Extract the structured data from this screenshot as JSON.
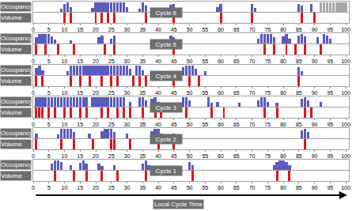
{
  "chart_data": [
    {
      "type": "bar",
      "title": "Cycle 6",
      "xlim": [
        0,
        101
      ],
      "xticks": [
        0,
        5,
        10,
        15,
        20,
        25,
        30,
        35,
        40,
        45,
        50,
        55,
        60,
        65,
        70,
        75,
        80,
        85,
        90,
        95,
        100
      ],
      "ylim": [
        0,
        1
      ],
      "tick_labels": "x",
      "series": [
        {
          "name": "Occupancy",
          "color": "#5b5bbd",
          "x": [
            9,
            10,
            11,
            12,
            19,
            20,
            21,
            22,
            23,
            24,
            25,
            26,
            27,
            28,
            29,
            30,
            34,
            35,
            36,
            44,
            45,
            59,
            60,
            70,
            71,
            85,
            86,
            89,
            92,
            93,
            94,
            95,
            96,
            97,
            98,
            99,
            100
          ],
          "values": [
            0.3,
            0.8,
            0.9,
            0.5,
            0.4,
            0.9,
            0.9,
            0.9,
            0.9,
            0.9,
            0.9,
            0.9,
            0.9,
            0.9,
            0.9,
            0.5,
            0.3,
            0.9,
            0.6,
            0.7,
            0.8,
            0.5,
            0.8,
            0.8,
            0.4,
            0.8,
            0.6,
            0.8,
            0.9,
            0.9,
            0.9,
            0.9,
            0.9,
            0.9,
            0.9,
            0.9,
            0.9
          ],
          "colors": [
            "#5b5bbd",
            "#5b5bbd",
            "#5b5bbd",
            "#5b5bbd",
            "#5b5bbd",
            "#5b5bbd",
            "#5b5bbd",
            "#5b5bbd",
            "#5b5bbd",
            "#5b5bbd",
            "#5b5bbd",
            "#5b5bbd",
            "#5b5bbd",
            "#5b5bbd",
            "#5b5bbd",
            "#5b5bbd",
            "#5b5bbd",
            "#5b5bbd",
            "#5b5bbd",
            "#5b5bbd",
            "#5b5bbd",
            "#5b5bbd",
            "#5b5bbd",
            "#5b5bbd",
            "#5b5bbd",
            "#5b5bbd",
            "#5b5bbd",
            "#5b5bbd",
            "#a8a8a8",
            "#a8a8a8",
            "#a8a8a8",
            "#a8a8a8",
            "#a8a8a8",
            "#a8a8a8",
            "#a8a8a8",
            "#a8a8a8",
            "#a8a8a8"
          ]
        },
        {
          "name": "Volume",
          "color": "#e0141c",
          "x": [
            10,
            12,
            20,
            22,
            24,
            26,
            36,
            45,
            60,
            70,
            86,
            90
          ],
          "values": [
            1,
            1,
            1,
            1,
            1,
            1,
            1,
            1,
            1,
            1,
            1,
            1
          ]
        }
      ]
    },
    {
      "type": "bar",
      "title": "Cycle 5",
      "xlim": [
        0,
        101
      ],
      "xticks": [
        0,
        5,
        10,
        15,
        20,
        25,
        30,
        35,
        40,
        45,
        50,
        55,
        60,
        65,
        70,
        75,
        80,
        85,
        90,
        95,
        100
      ],
      "ylim": [
        0,
        1
      ],
      "tick_labels": "x",
      "series": [
        {
          "name": "Occupancy",
          "color": "#5b5bbd",
          "x": [
            1,
            2,
            3,
            4,
            5,
            6,
            7,
            12,
            21,
            22,
            25,
            26,
            44,
            45,
            72,
            73,
            74,
            75,
            76,
            77,
            80,
            81,
            82,
            85,
            86,
            87,
            91,
            93,
            94,
            95
          ],
          "values": [
            0.6,
            0.9,
            0.9,
            0.9,
            0.9,
            0.7,
            0.4,
            0.3,
            0.6,
            0.8,
            0.5,
            0.8,
            0.8,
            0.6,
            0.5,
            0.9,
            0.9,
            0.9,
            0.9,
            0.6,
            0.7,
            0.9,
            0.5,
            0.8,
            0.9,
            0.7,
            0.6,
            0.9,
            0.8,
            0.5
          ]
        },
        {
          "name": "Volume",
          "color": "#e0141c",
          "x": [
            1,
            4,
            8,
            13,
            23,
            26,
            45,
            74,
            77,
            81,
            84,
            87,
            92
          ],
          "values": [
            1,
            1,
            1,
            1,
            1,
            1,
            1,
            1,
            1,
            1,
            1,
            1,
            1
          ]
        }
      ]
    },
    {
      "type": "bar",
      "title": "Cycle 4",
      "xlim": [
        0,
        101
      ],
      "xticks": [
        0,
        5,
        10,
        15,
        20,
        25,
        30,
        35,
        40,
        45,
        50,
        55,
        60,
        65,
        70,
        75,
        80,
        85,
        90,
        95,
        100
      ],
      "ylim": [
        0,
        1
      ],
      "tick_labels": "x",
      "series": [
        {
          "name": "Occupancy",
          "color": "#5b5bbd",
          "x": [
            1,
            2,
            3,
            11,
            12,
            13,
            14,
            15,
            16,
            17,
            18,
            19,
            20,
            21,
            22,
            23,
            24,
            25,
            26,
            27,
            28,
            29,
            30,
            31,
            33,
            34,
            35,
            48,
            49,
            50,
            51,
            52,
            55,
            85,
            86
          ],
          "values": [
            0.7,
            0.9,
            0.5,
            0.4,
            0.9,
            0.9,
            0.9,
            0.9,
            0.9,
            0.9,
            0.9,
            0.9,
            0.9,
            0.9,
            0.9,
            0.9,
            0.9,
            0.9,
            0.9,
            0.9,
            0.9,
            0.9,
            0.9,
            0.6,
            0.9,
            0.9,
            0.5,
            0.8,
            0.9,
            0.9,
            0.9,
            0.6,
            0.4,
            0.8,
            0.4
          ]
        },
        {
          "name": "Volume",
          "color": "#e0141c",
          "x": [
            1,
            3,
            12,
            15,
            18,
            22,
            25,
            27,
            32,
            34,
            36,
            45,
            50,
            53,
            85
          ],
          "values": [
            1,
            1,
            1,
            1,
            1,
            1,
            1,
            1,
            1,
            1,
            1,
            1,
            1,
            1,
            1
          ]
        }
      ]
    },
    {
      "type": "bar",
      "title": "Cycle 3",
      "xlim": [
        0,
        101
      ],
      "xticks": [
        0,
        5,
        10,
        15,
        20,
        25,
        30,
        35,
        40,
        45,
        50,
        55,
        60,
        65,
        70,
        75,
        80,
        85,
        90,
        95,
        100
      ],
      "ylim": [
        0,
        1
      ],
      "tick_labels": "x",
      "series": [
        {
          "name": "Occupancy",
          "color": "#5b5bbd",
          "x": [
            1,
            2,
            3,
            4,
            5,
            6,
            7,
            8,
            9,
            10,
            11,
            12,
            13,
            14,
            15,
            16,
            17,
            19,
            20,
            21,
            22,
            23,
            24,
            25,
            26,
            27,
            28,
            29,
            31,
            34,
            35,
            36,
            38,
            39,
            40,
            48,
            49,
            50,
            56,
            57,
            59,
            66,
            72,
            73,
            74,
            75,
            78,
            86,
            87,
            88,
            92
          ],
          "values": [
            0.9,
            0.9,
            0.9,
            0.9,
            0.9,
            0.9,
            0.9,
            0.9,
            0.9,
            0.9,
            0.9,
            0.9,
            0.9,
            0.9,
            0.9,
            0.9,
            0.9,
            0.9,
            0.9,
            0.9,
            0.9,
            0.9,
            0.9,
            0.9,
            0.9,
            0.9,
            0.9,
            0.9,
            0.5,
            0.9,
            0.9,
            0.6,
            0.8,
            0.9,
            0.5,
            0.9,
            0.9,
            0.6,
            0.9,
            0.4,
            0.5,
            0.4,
            0.6,
            0.9,
            0.9,
            0.5,
            0.4,
            0.8,
            0.9,
            0.6,
            0.5
          ]
        },
        {
          "name": "Volume",
          "color": "#e0141c",
          "x": [
            1,
            2,
            3,
            5,
            7,
            10,
            12,
            15,
            17,
            22,
            24,
            27,
            29,
            31,
            35,
            39,
            41,
            49,
            57,
            61,
            74,
            78,
            87,
            89
          ],
          "values": [
            1,
            1,
            1,
            1,
            1,
            1,
            1,
            1,
            1,
            1,
            1,
            1,
            1,
            1,
            1,
            1,
            1,
            1,
            1,
            1,
            1,
            1,
            1,
            1
          ]
        }
      ]
    },
    {
      "type": "bar",
      "title": "Cycle 2",
      "xlim": [
        0,
        101
      ],
      "xticks": [
        0,
        5,
        10,
        15,
        20,
        25,
        30,
        35,
        40,
        45,
        50,
        55,
        60,
        65,
        70,
        75,
        80,
        85,
        90,
        95,
        100
      ],
      "ylim": [
        0,
        1
      ],
      "tick_labels": "x",
      "series": [
        {
          "name": "Occupancy",
          "color": "#5b5bbd",
          "x": [
            1,
            8,
            9,
            10,
            11,
            12,
            13,
            18,
            22,
            23,
            24,
            25,
            26,
            30,
            38,
            39,
            40,
            41,
            45,
            86,
            87,
            88
          ],
          "values": [
            0.5,
            0.4,
            0.9,
            0.9,
            0.9,
            0.9,
            0.6,
            0.5,
            0.7,
            0.9,
            0.9,
            0.9,
            0.6,
            0.5,
            0.7,
            0.9,
            0.9,
            0.5,
            0.5,
            0.8,
            0.9,
            0.6
          ]
        },
        {
          "name": "Volume",
          "color": "#e0141c",
          "x": [
            1,
            9,
            13,
            19,
            25,
            26,
            31,
            40,
            45,
            87
          ],
          "values": [
            1,
            1,
            1,
            1,
            1,
            1,
            1,
            1,
            1,
            1
          ]
        }
      ]
    },
    {
      "type": "bar",
      "title": "Cycle 1",
      "xlabel": "Local Cycle Time",
      "xlim": [
        0,
        101
      ],
      "xticks": [
        0,
        5,
        10,
        15,
        20,
        25,
        30,
        35,
        40,
        45,
        50,
        55,
        60,
        65,
        70,
        75,
        80,
        85,
        90,
        95,
        100
      ],
      "ylim": [
        0,
        1
      ],
      "tick_labels": "x",
      "series": [
        {
          "name": "Occupancy",
          "color": "#5b5bbd",
          "x": [
            6,
            7,
            8,
            9,
            12,
            15,
            16,
            17,
            21,
            22,
            26,
            35,
            36,
            37,
            50,
            51,
            77,
            78,
            79,
            80,
            81,
            82
          ],
          "values": [
            0.6,
            0.9,
            0.9,
            0.8,
            0.5,
            0.7,
            0.9,
            0.6,
            0.6,
            0.4,
            0.5,
            0.6,
            0.9,
            0.5,
            0.8,
            0.5,
            0.5,
            0.8,
            0.9,
            0.9,
            0.8,
            0.5
          ]
        },
        {
          "name": "Volume",
          "color": "#e0141c",
          "x": [
            7,
            13,
            17,
            22,
            27,
            36,
            51,
            78,
            82
          ],
          "values": [
            1,
            1,
            1,
            1,
            1,
            1,
            1,
            1,
            1
          ]
        }
      ]
    }
  ]
}
